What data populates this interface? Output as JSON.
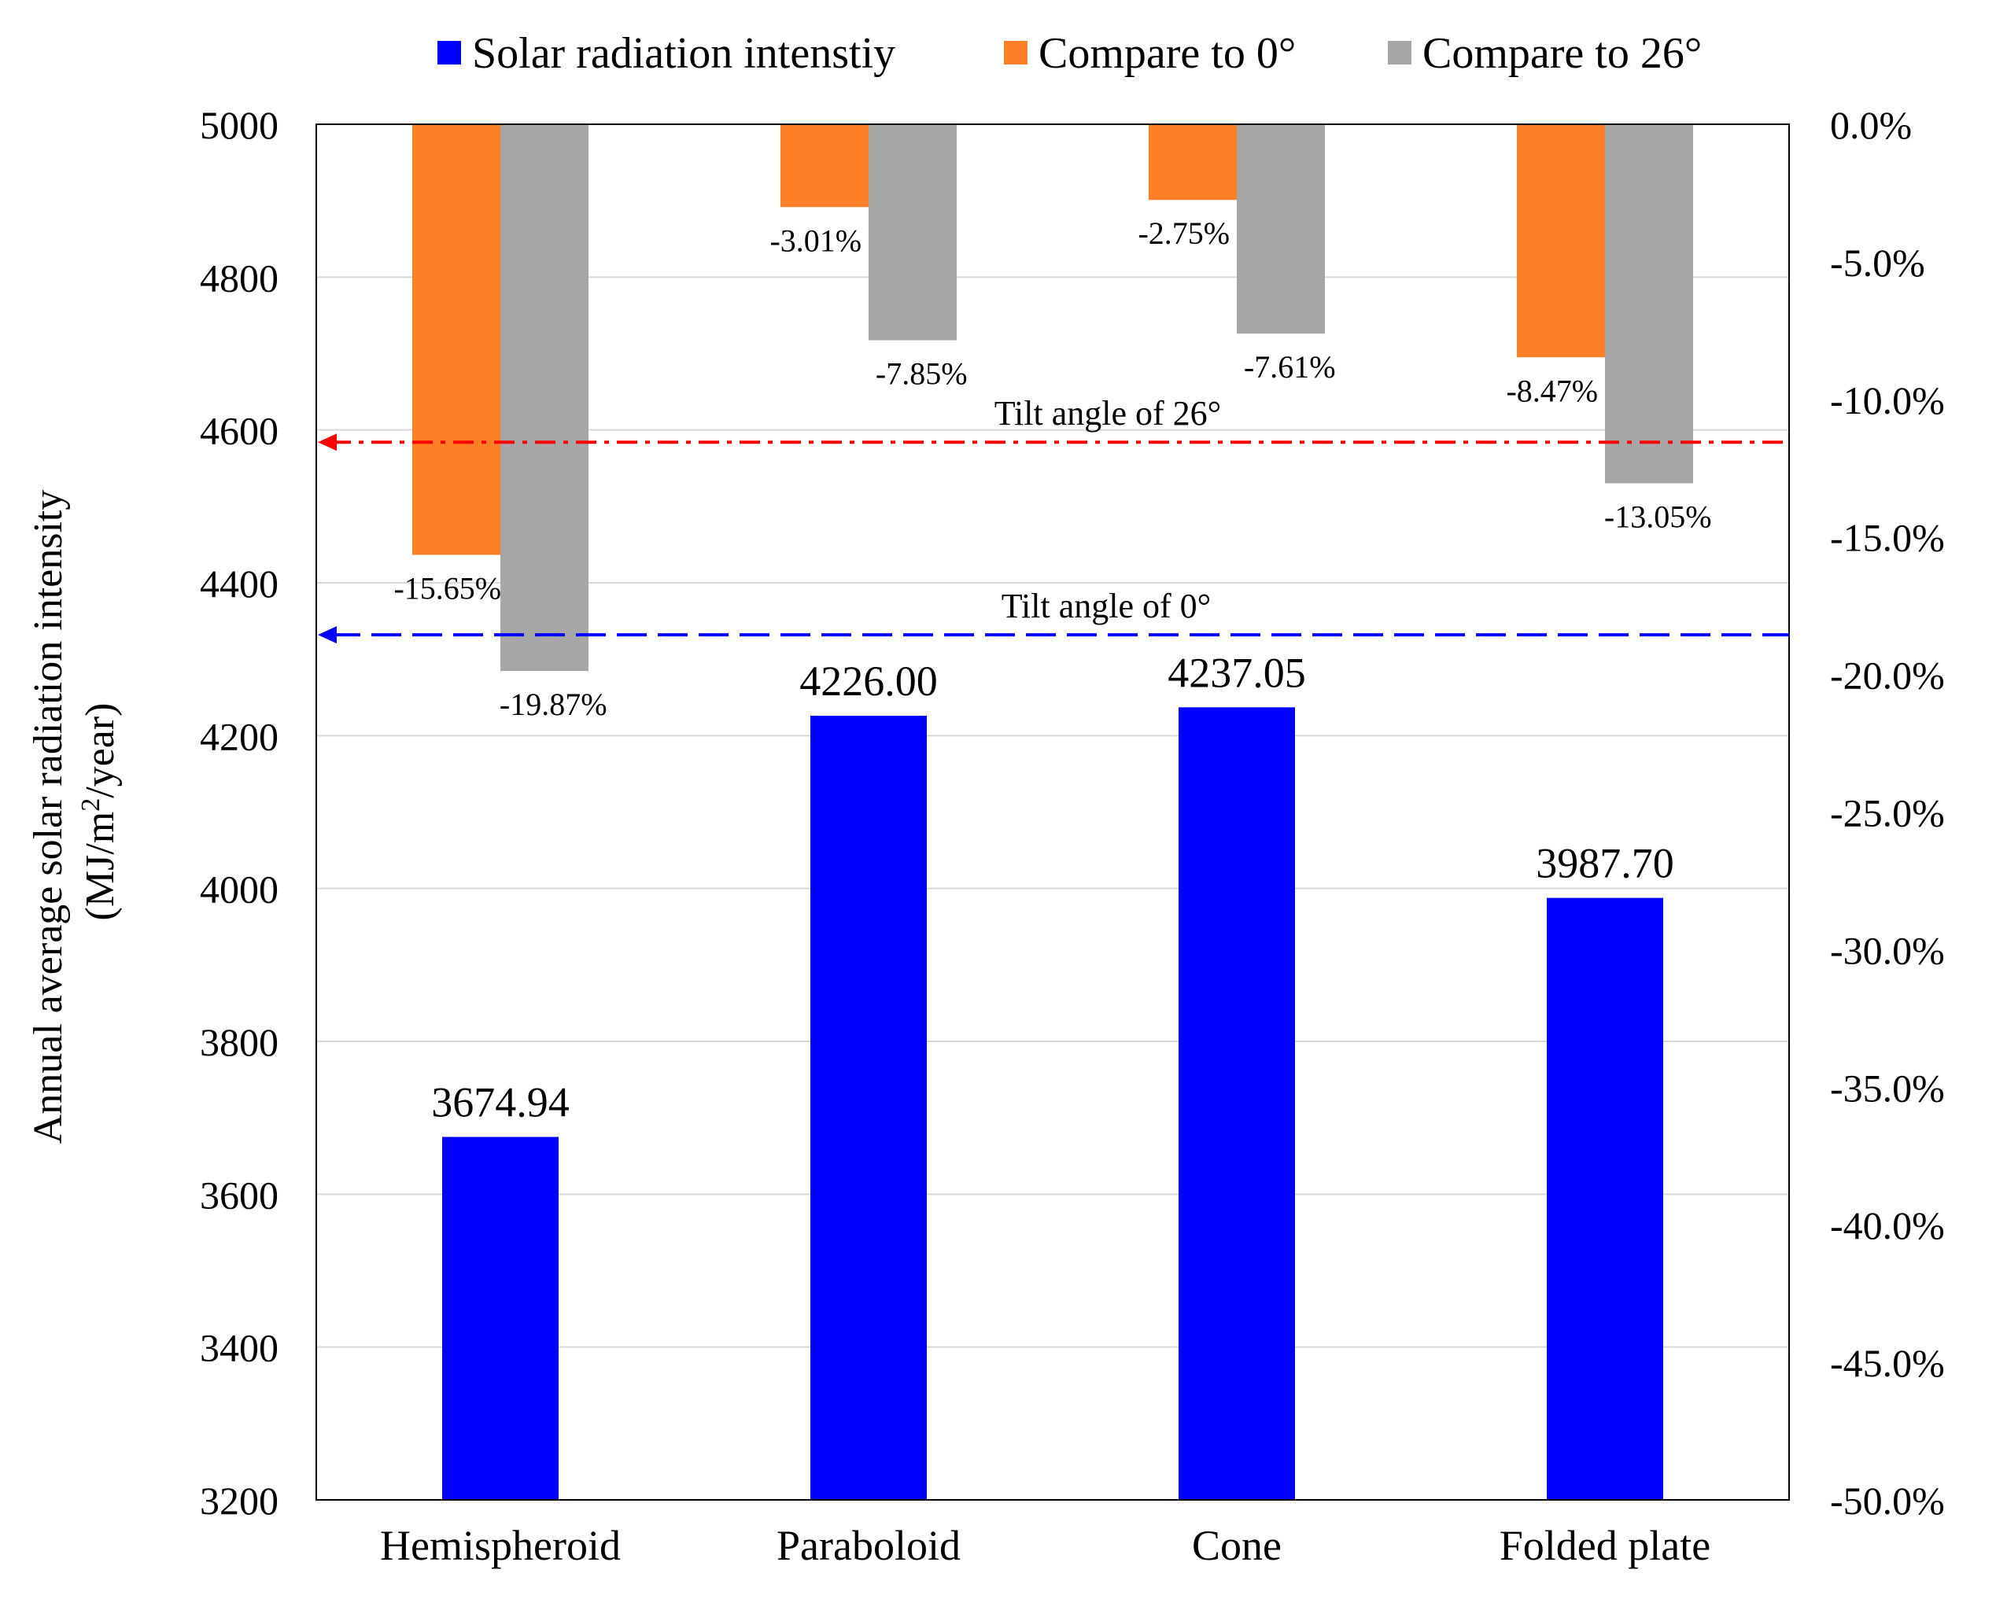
{
  "chart_data": {
    "type": "bar",
    "categories": [
      "Hemispheroid",
      "Paraboloid",
      "Cone",
      "Folded plate"
    ],
    "series": [
      {
        "name": "Solar radiation intenstiy",
        "axis": "left",
        "color": "#0000FF",
        "values": [
          3674.94,
          4226.0,
          4237.05,
          3987.7
        ],
        "labels": [
          "3674.94",
          "4226.00",
          "4237.05",
          "3987.70"
        ]
      },
      {
        "name": "Compare to 0°",
        "axis": "right",
        "color": "#FF7F27",
        "values": [
          -15.65,
          -3.01,
          -2.75,
          -8.47
        ],
        "labels": [
          "-15.65%",
          "-3.01%",
          "-2.75%",
          "-8.47%"
        ]
      },
      {
        "name": "Compare to 26°",
        "axis": "right",
        "color": "#A6A6A6",
        "values": [
          -19.87,
          -7.85,
          -7.61,
          -13.05
        ],
        "labels": [
          "-19.87%",
          "-7.85%",
          "-7.61%",
          "-13.05%"
        ]
      }
    ],
    "reference_lines": [
      {
        "label": "Tilt angle of 26°",
        "value": 4584,
        "color": "#FF0000",
        "style": "dash-dot"
      },
      {
        "label": "Tilt angle of 0°",
        "value": 4332,
        "color": "#0000FF",
        "style": "dashed"
      }
    ],
    "ylabel": [
      "Annual  average solar radiation intensity",
      "(MJ/m",
      "2",
      "/year)"
    ],
    "y_left": {
      "min": 3200,
      "max": 5000,
      "step": 200,
      "tick_labels": [
        "3200",
        "3400",
        "3600",
        "3800",
        "4000",
        "4200",
        "4400",
        "4600",
        "4800",
        "5000"
      ]
    },
    "y_right": {
      "min": -50,
      "max": 0,
      "step": 5,
      "tick_labels": [
        "-50.0%",
        "-45.0%",
        "-40.0%",
        "-35.0%",
        "-30.0%",
        "-25.0%",
        "-20.0%",
        "-15.0%",
        "-10.0%",
        "-5.0%",
        "0.0%"
      ]
    },
    "legend_position": "top",
    "grid": true
  }
}
